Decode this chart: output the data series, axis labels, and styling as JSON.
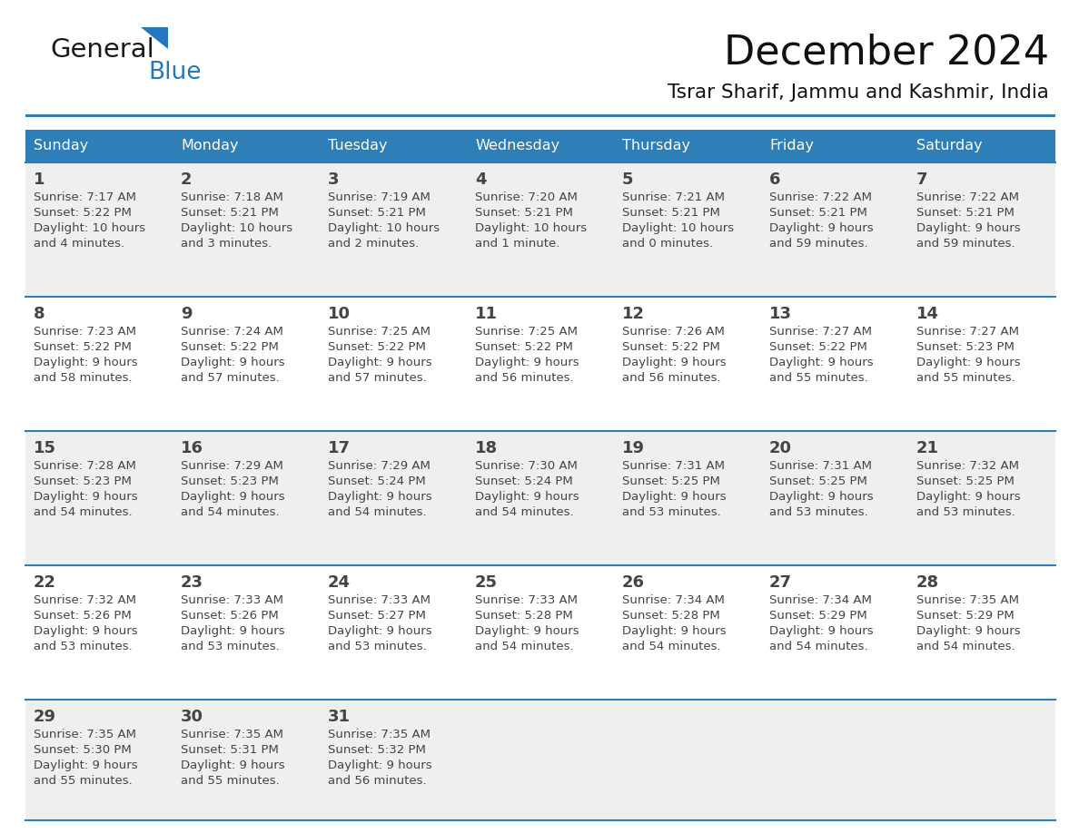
{
  "title": "December 2024",
  "subtitle": "Tsrar Sharif, Jammu and Kashmir, India",
  "days_of_week": [
    "Sunday",
    "Monday",
    "Tuesday",
    "Wednesday",
    "Thursday",
    "Friday",
    "Saturday"
  ],
  "header_bg": "#2e7eb8",
  "header_text_color": "#ffffff",
  "row_bg_odd": "#efefef",
  "row_bg_even": "#ffffff",
  "separator_color": "#2e7eb8",
  "text_color": "#444444",
  "title_color": "#111111",
  "logo_general_color": "#1a1a1a",
  "logo_blue_color": "#2478be",
  "calendar_data": [
    {
      "week": 0,
      "cells": [
        {
          "day": 1,
          "col": 0,
          "sunrise": "7:17 AM",
          "sunset": "5:22 PM",
          "daylight_h": "10 hours",
          "daylight_m": "and 4 minutes."
        },
        {
          "day": 2,
          "col": 1,
          "sunrise": "7:18 AM",
          "sunset": "5:21 PM",
          "daylight_h": "10 hours",
          "daylight_m": "and 3 minutes."
        },
        {
          "day": 3,
          "col": 2,
          "sunrise": "7:19 AM",
          "sunset": "5:21 PM",
          "daylight_h": "10 hours",
          "daylight_m": "and 2 minutes."
        },
        {
          "day": 4,
          "col": 3,
          "sunrise": "7:20 AM",
          "sunset": "5:21 PM",
          "daylight_h": "10 hours",
          "daylight_m": "and 1 minute."
        },
        {
          "day": 5,
          "col": 4,
          "sunrise": "7:21 AM",
          "sunset": "5:21 PM",
          "daylight_h": "10 hours",
          "daylight_m": "and 0 minutes."
        },
        {
          "day": 6,
          "col": 5,
          "sunrise": "7:22 AM",
          "sunset": "5:21 PM",
          "daylight_h": "9 hours",
          "daylight_m": "and 59 minutes."
        },
        {
          "day": 7,
          "col": 6,
          "sunrise": "7:22 AM",
          "sunset": "5:21 PM",
          "daylight_h": "9 hours",
          "daylight_m": "and 59 minutes."
        }
      ]
    },
    {
      "week": 1,
      "cells": [
        {
          "day": 8,
          "col": 0,
          "sunrise": "7:23 AM",
          "sunset": "5:22 PM",
          "daylight_h": "9 hours",
          "daylight_m": "and 58 minutes."
        },
        {
          "day": 9,
          "col": 1,
          "sunrise": "7:24 AM",
          "sunset": "5:22 PM",
          "daylight_h": "9 hours",
          "daylight_m": "and 57 minutes."
        },
        {
          "day": 10,
          "col": 2,
          "sunrise": "7:25 AM",
          "sunset": "5:22 PM",
          "daylight_h": "9 hours",
          "daylight_m": "and 57 minutes."
        },
        {
          "day": 11,
          "col": 3,
          "sunrise": "7:25 AM",
          "sunset": "5:22 PM",
          "daylight_h": "9 hours",
          "daylight_m": "and 56 minutes."
        },
        {
          "day": 12,
          "col": 4,
          "sunrise": "7:26 AM",
          "sunset": "5:22 PM",
          "daylight_h": "9 hours",
          "daylight_m": "and 56 minutes."
        },
        {
          "day": 13,
          "col": 5,
          "sunrise": "7:27 AM",
          "sunset": "5:22 PM",
          "daylight_h": "9 hours",
          "daylight_m": "and 55 minutes."
        },
        {
          "day": 14,
          "col": 6,
          "sunrise": "7:27 AM",
          "sunset": "5:23 PM",
          "daylight_h": "9 hours",
          "daylight_m": "and 55 minutes."
        }
      ]
    },
    {
      "week": 2,
      "cells": [
        {
          "day": 15,
          "col": 0,
          "sunrise": "7:28 AM",
          "sunset": "5:23 PM",
          "daylight_h": "9 hours",
          "daylight_m": "and 54 minutes."
        },
        {
          "day": 16,
          "col": 1,
          "sunrise": "7:29 AM",
          "sunset": "5:23 PM",
          "daylight_h": "9 hours",
          "daylight_m": "and 54 minutes."
        },
        {
          "day": 17,
          "col": 2,
          "sunrise": "7:29 AM",
          "sunset": "5:24 PM",
          "daylight_h": "9 hours",
          "daylight_m": "and 54 minutes."
        },
        {
          "day": 18,
          "col": 3,
          "sunrise": "7:30 AM",
          "sunset": "5:24 PM",
          "daylight_h": "9 hours",
          "daylight_m": "and 54 minutes."
        },
        {
          "day": 19,
          "col": 4,
          "sunrise": "7:31 AM",
          "sunset": "5:25 PM",
          "daylight_h": "9 hours",
          "daylight_m": "and 53 minutes."
        },
        {
          "day": 20,
          "col": 5,
          "sunrise": "7:31 AM",
          "sunset": "5:25 PM",
          "daylight_h": "9 hours",
          "daylight_m": "and 53 minutes."
        },
        {
          "day": 21,
          "col": 6,
          "sunrise": "7:32 AM",
          "sunset": "5:25 PM",
          "daylight_h": "9 hours",
          "daylight_m": "and 53 minutes."
        }
      ]
    },
    {
      "week": 3,
      "cells": [
        {
          "day": 22,
          "col": 0,
          "sunrise": "7:32 AM",
          "sunset": "5:26 PM",
          "daylight_h": "9 hours",
          "daylight_m": "and 53 minutes."
        },
        {
          "day": 23,
          "col": 1,
          "sunrise": "7:33 AM",
          "sunset": "5:26 PM",
          "daylight_h": "9 hours",
          "daylight_m": "and 53 minutes."
        },
        {
          "day": 24,
          "col": 2,
          "sunrise": "7:33 AM",
          "sunset": "5:27 PM",
          "daylight_h": "9 hours",
          "daylight_m": "and 53 minutes."
        },
        {
          "day": 25,
          "col": 3,
          "sunrise": "7:33 AM",
          "sunset": "5:28 PM",
          "daylight_h": "9 hours",
          "daylight_m": "and 54 minutes."
        },
        {
          "day": 26,
          "col": 4,
          "sunrise": "7:34 AM",
          "sunset": "5:28 PM",
          "daylight_h": "9 hours",
          "daylight_m": "and 54 minutes."
        },
        {
          "day": 27,
          "col": 5,
          "sunrise": "7:34 AM",
          "sunset": "5:29 PM",
          "daylight_h": "9 hours",
          "daylight_m": "and 54 minutes."
        },
        {
          "day": 28,
          "col": 6,
          "sunrise": "7:35 AM",
          "sunset": "5:29 PM",
          "daylight_h": "9 hours",
          "daylight_m": "and 54 minutes."
        }
      ]
    },
    {
      "week": 4,
      "cells": [
        {
          "day": 29,
          "col": 0,
          "sunrise": "7:35 AM",
          "sunset": "5:30 PM",
          "daylight_h": "9 hours",
          "daylight_m": "and 55 minutes."
        },
        {
          "day": 30,
          "col": 1,
          "sunrise": "7:35 AM",
          "sunset": "5:31 PM",
          "daylight_h": "9 hours",
          "daylight_m": "and 55 minutes."
        },
        {
          "day": 31,
          "col": 2,
          "sunrise": "7:35 AM",
          "sunset": "5:32 PM",
          "daylight_h": "9 hours",
          "daylight_m": "and 56 minutes."
        }
      ]
    }
  ]
}
